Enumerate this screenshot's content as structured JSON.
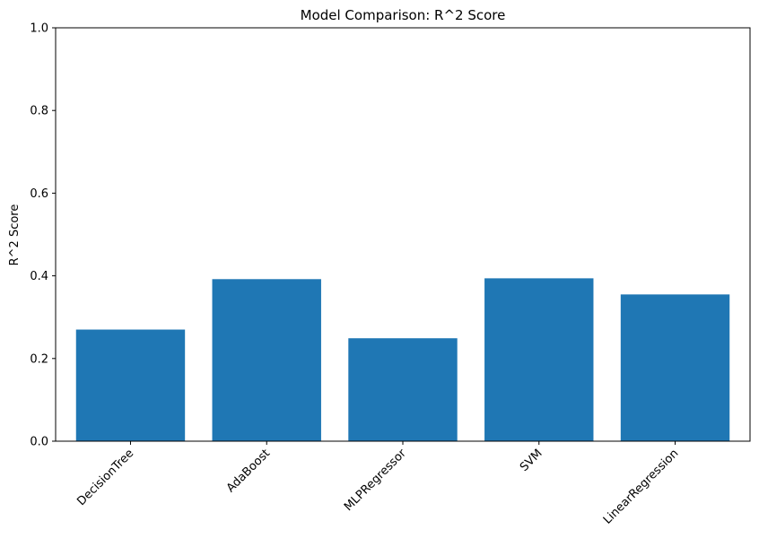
{
  "chart_data": {
    "type": "bar",
    "title": "Model Comparison: R^2 Score",
    "xlabel": "",
    "ylabel": "R^2 Score",
    "categories": [
      "DecisionTree",
      "AdaBoost",
      "MLPRegressor",
      "SVM",
      "LinearRegression"
    ],
    "values": [
      0.27,
      0.392,
      0.249,
      0.394,
      0.355
    ],
    "ylim": [
      0,
      1
    ],
    "yticks": [
      0.0,
      0.2,
      0.4,
      0.6,
      0.8,
      1.0
    ],
    "ytick_labels": [
      "0.0",
      "0.2",
      "0.4",
      "0.6",
      "0.8",
      "1.0"
    ],
    "xtick_rotation_deg": -45,
    "grid": false,
    "legend": "none",
    "bar_color": "#1f77b4",
    "axis_color": "#000000"
  }
}
